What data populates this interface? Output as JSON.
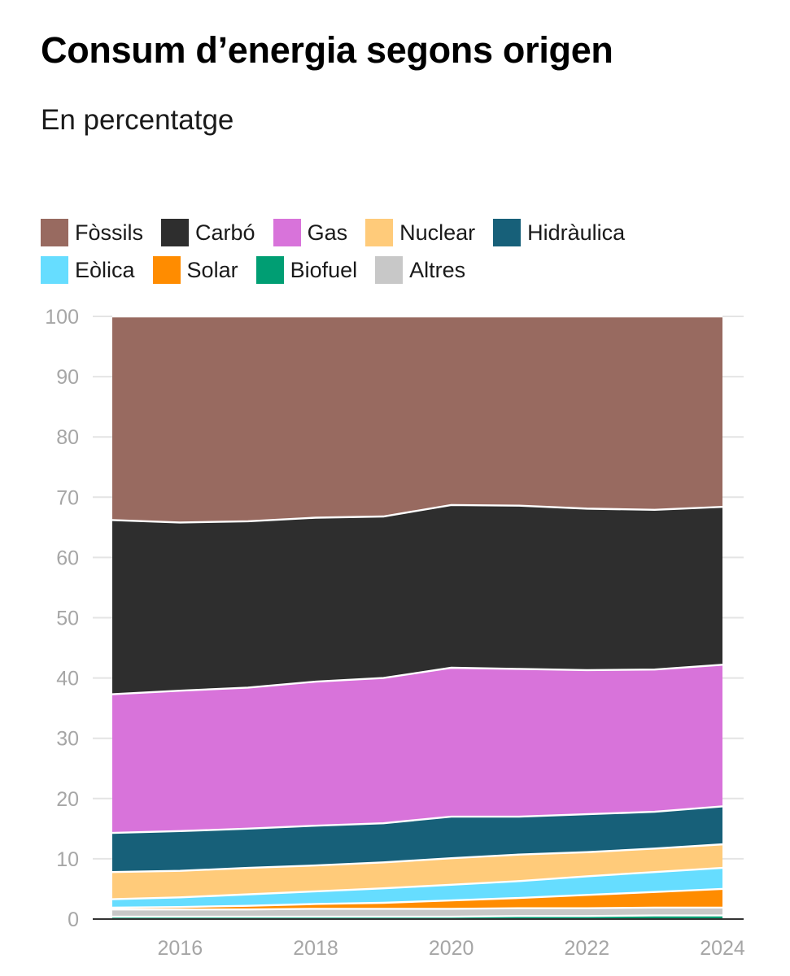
{
  "chart_data": {
    "type": "area",
    "stacked": true,
    "title": "Consum d’energia segons origen",
    "subtitle": "En percentatge",
    "x": [
      2015,
      2016,
      2017,
      2018,
      2019,
      2020,
      2021,
      2022,
      2023,
      2024
    ],
    "xticks": [
      "2016",
      "2018",
      "2020",
      "2022",
      "2024"
    ],
    "xtick_values": [
      2016,
      2018,
      2020,
      2022,
      2024
    ],
    "xlim": [
      2015,
      2024
    ],
    "ylim": [
      0,
      100
    ],
    "yticks": [
      "0",
      "10",
      "20",
      "30",
      "40",
      "50",
      "60",
      "70",
      "80",
      "90",
      "100"
    ],
    "ytick_values": [
      0,
      10,
      20,
      30,
      40,
      50,
      60,
      70,
      80,
      90,
      100
    ],
    "series": [
      {
        "name": "Biofuel",
        "color": "#009e73",
        "values": [
          0.4,
          0.4,
          0.4,
          0.4,
          0.4,
          0.4,
          0.5,
          0.5,
          0.6,
          0.6
        ]
      },
      {
        "name": "Altres",
        "color": "#c8c8c8",
        "values": [
          1.2,
          1.2,
          1.2,
          1.3,
          1.3,
          1.3,
          1.3,
          1.3,
          1.3,
          1.3
        ]
      },
      {
        "name": "Solar",
        "color": "#ff8c00",
        "values": [
          0.3,
          0.4,
          0.6,
          0.8,
          1.0,
          1.4,
          1.7,
          2.2,
          2.6,
          3.1
        ]
      },
      {
        "name": "Eòlica",
        "color": "#66ddff",
        "values": [
          1.4,
          1.6,
          1.9,
          2.1,
          2.4,
          2.6,
          2.8,
          3.1,
          3.3,
          3.5
        ]
      },
      {
        "name": "Nuclear",
        "color": "#ffcb7a",
        "values": [
          4.5,
          4.4,
          4.4,
          4.3,
          4.3,
          4.4,
          4.4,
          4.0,
          3.9,
          3.9
        ]
      },
      {
        "name": "Hidràulica",
        "color": "#176079",
        "values": [
          6.5,
          6.6,
          6.5,
          6.6,
          6.5,
          6.9,
          6.3,
          6.3,
          6.1,
          6.3
        ]
      },
      {
        "name": "Gas",
        "color": "#d873da",
        "values": [
          23.0,
          23.3,
          23.4,
          23.9,
          24.1,
          24.7,
          24.5,
          23.9,
          23.6,
          23.5
        ]
      },
      {
        "name": "Carbó",
        "color": "#2e2e2e",
        "values": [
          28.9,
          27.9,
          27.6,
          27.2,
          26.8,
          27.0,
          27.1,
          26.8,
          26.5,
          26.2
        ]
      },
      {
        "name": "Fòssils",
        "color": "#986a60",
        "values": [
          33.8,
          34.2,
          34.0,
          33.4,
          33.2,
          31.3,
          31.4,
          31.9,
          32.1,
          31.6
        ]
      }
    ],
    "legend": [
      [
        "Fòssils",
        "Carbó",
        "Gas",
        "Nuclear",
        "Hidràulica"
      ],
      [
        "Eòlica",
        "Solar",
        "Biofuel",
        "Altres"
      ]
    ],
    "legend_placement": "top",
    "grid": true
  }
}
